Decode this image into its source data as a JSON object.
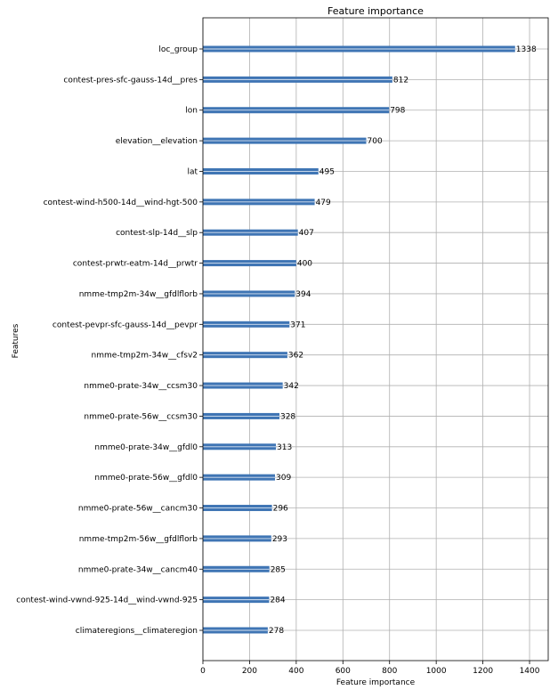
{
  "chart_data": {
    "type": "bar",
    "orientation": "horizontal",
    "title": "Feature importance",
    "xlabel": "Feature importance",
    "ylabel": "Features",
    "xlim": [
      0,
      1480
    ],
    "xticks": [
      0,
      200,
      400,
      600,
      800,
      1000,
      1200,
      1400
    ],
    "grid": true,
    "bar_color": "#3f75b4",
    "categories": [
      "loc_group",
      "contest-pres-sfc-gauss-14d__pres",
      "lon",
      "elevation__elevation",
      "lat",
      "contest-wind-h500-14d__wind-hgt-500",
      "contest-slp-14d__slp",
      "contest-prwtr-eatm-14d__prwtr",
      "nmme-tmp2m-34w__gfdlflorb",
      "contest-pevpr-sfc-gauss-14d__pevpr",
      "nmme-tmp2m-34w__cfsv2",
      "nmme0-prate-34w__ccsm30",
      "nmme0-prate-56w__ccsm30",
      "nmme0-prate-34w__gfdl0",
      "nmme0-prate-56w__gfdl0",
      "nmme0-prate-56w__cancm30",
      "nmme-tmp2m-56w__gfdlflorb",
      "nmme0-prate-34w__cancm40",
      "contest-wind-vwnd-925-14d__wind-vwnd-925",
      "climateregions__climateregion"
    ],
    "values": [
      1338,
      812,
      798,
      700,
      495,
      479,
      407,
      400,
      394,
      371,
      362,
      342,
      328,
      313,
      309,
      296,
      293,
      285,
      284,
      278
    ]
  }
}
